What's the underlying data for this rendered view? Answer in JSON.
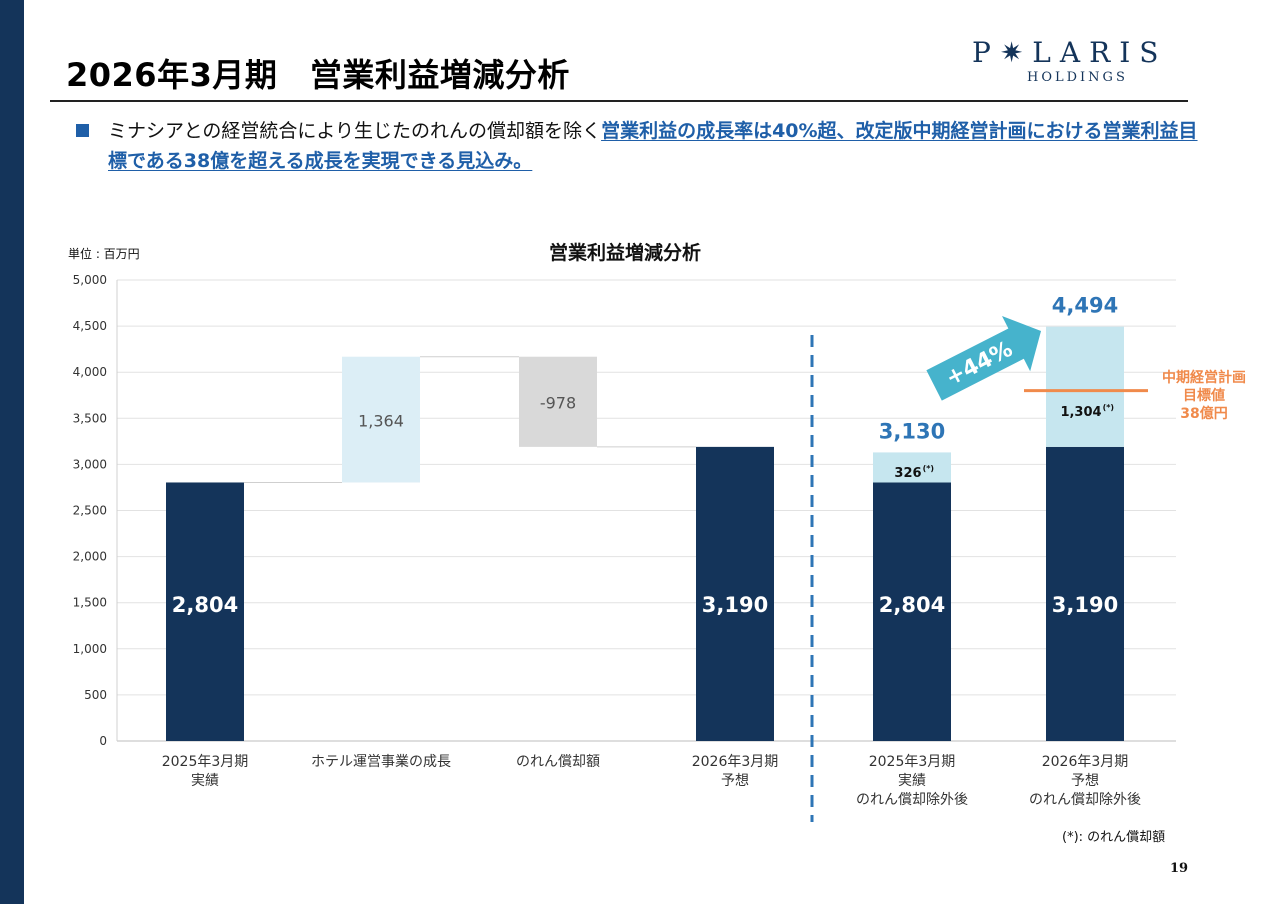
{
  "title": "2026年3月期　営業利益増減分析",
  "logo": {
    "main": "P✷LARIS",
    "sub": "HOLDINGS"
  },
  "lead": {
    "normal": "ミナシアとの経営統合により生じたのれんの償却額を除く",
    "highlight": "営業利益の成長率は40%超、改定版中期経営計画における営業利益目標である38億を超える成長を実現できる見込み。"
  },
  "unit_label": "単位 : 百万円",
  "footnote": "(*): のれん償却額",
  "page_number": "19",
  "colors": {
    "navy": "#14345a",
    "light_blue": "#c6e6ef",
    "pale_blue": "#dceef6",
    "gray": "#d9d9d9",
    "accent_blue": "#2e75b6",
    "orange": "#f08a4b",
    "arrow": "#46b3cc"
  },
  "chart_data": {
    "type": "bar",
    "title": "営業利益増減分析",
    "ylabel": "単位 : 百万円",
    "ylim": [
      0,
      5000
    ],
    "yticks": [
      "0",
      "500",
      "1,000",
      "1,500",
      "2,000",
      "2,500",
      "3,000",
      "3,500",
      "4,000",
      "4,500",
      "5,000"
    ],
    "ytick_values": [
      0,
      500,
      1000,
      1500,
      2000,
      2500,
      3000,
      3500,
      4000,
      4500,
      5000
    ],
    "grid": true,
    "categories": [
      [
        "2025年3月期",
        "実績"
      ],
      [
        "ホテル運営事業の成長"
      ],
      [
        "のれん償却額"
      ],
      [
        "2026年3月期",
        "予想"
      ],
      [
        "2025年3月期",
        "実績",
        "のれん償却除外後"
      ],
      [
        "2026年3月期",
        "予想",
        "のれん償却除外後"
      ]
    ],
    "waterfall": [
      {
        "base": 0,
        "value": 2804,
        "label": "2,804",
        "kind": "total"
      },
      {
        "base": 2804,
        "value": 1364,
        "label": "1,364",
        "kind": "increase"
      },
      {
        "base": 3190,
        "value": 978,
        "label": "-978",
        "kind": "decrease"
      },
      {
        "base": 0,
        "value": 3190,
        "label": "3,190",
        "kind": "total"
      }
    ],
    "stacked": [
      {
        "base_value": 2804,
        "base_label": "2,804",
        "addon_value": 326,
        "addon_label": "326",
        "addon_marker": "(*)",
        "total_label": "3,130"
      },
      {
        "base_value": 3190,
        "base_label": "3,190",
        "addon_value": 1304,
        "addon_label": "1,304",
        "addon_marker": "(*)",
        "total_label": "4,494"
      }
    ],
    "growth_annotation": "+44%",
    "target": {
      "value": 3800,
      "label_lines": [
        "中期経営計画",
        "目標値",
        "38億円"
      ]
    }
  }
}
